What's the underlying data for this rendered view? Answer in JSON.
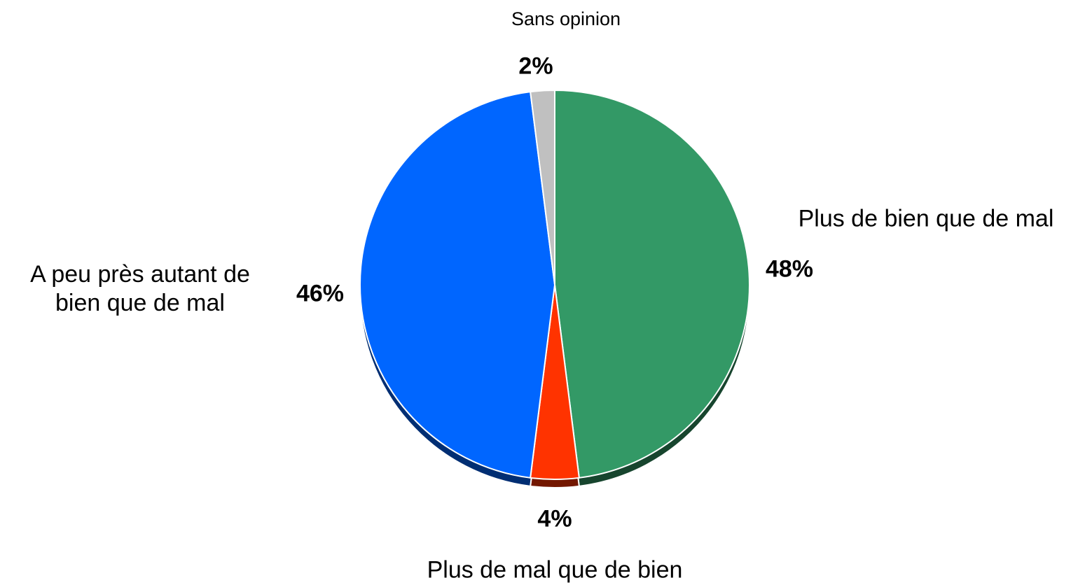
{
  "chart_data": {
    "type": "pie",
    "categories": [
      "Plus de bien que de mal",
      "Plus de mal que de bien",
      "A peu près autant de bien que de mal",
      "Sans opinion"
    ],
    "values": [
      48,
      4,
      46,
      2
    ],
    "value_labels": [
      "48%",
      "4%",
      "46%",
      "2%"
    ],
    "colors": [
      "#339966",
      "#ff3300",
      "#0066ff",
      "#c0c0c0"
    ]
  }
}
